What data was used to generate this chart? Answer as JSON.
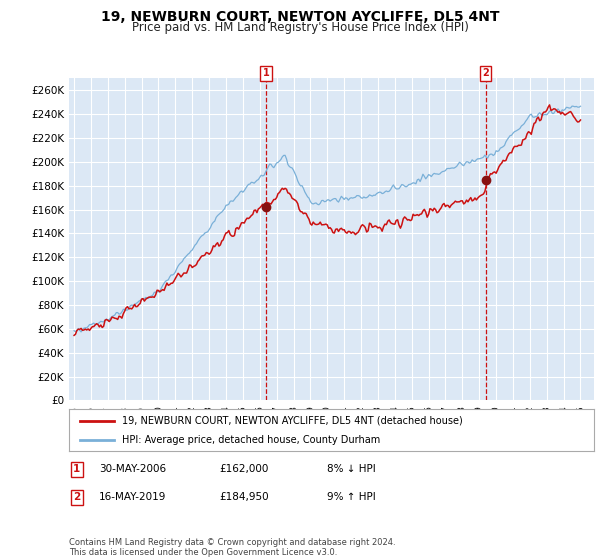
{
  "title": "19, NEWBURN COURT, NEWTON AYCLIFFE, DL5 4NT",
  "subtitle": "Price paid vs. HM Land Registry's House Price Index (HPI)",
  "title_fontsize": 10,
  "subtitle_fontsize": 8.5,
  "ylabel_ticks": [
    "£0",
    "£20K",
    "£40K",
    "£60K",
    "£80K",
    "£100K",
    "£120K",
    "£140K",
    "£160K",
    "£180K",
    "£200K",
    "£220K",
    "£240K",
    "£260K"
  ],
  "ytick_vals": [
    0,
    20000,
    40000,
    60000,
    80000,
    100000,
    120000,
    140000,
    160000,
    180000,
    200000,
    220000,
    240000,
    260000
  ],
  "ylim": [
    0,
    270000
  ],
  "xlim_left": 1994.7,
  "xlim_right": 2025.8,
  "background_color": "#ffffff",
  "plot_bg_color": "#dce8f5",
  "grid_color": "#ffffff",
  "shade_color": "#dce8f5",
  "hpi_color": "#7ab0d8",
  "price_color": "#cc1111",
  "marker_color": "#881111",
  "vline_color": "#cc1111",
  "legend_label_price": "19, NEWBURN COURT, NEWTON AYCLIFFE, DL5 4NT (detached house)",
  "legend_label_hpi": "HPI: Average price, detached house, County Durham",
  "sale1_date": "30-MAY-2006",
  "sale1_price": "£162,000",
  "sale1_hpi": "8% ↓ HPI",
  "sale2_date": "16-MAY-2019",
  "sale2_price": "£184,950",
  "sale2_hpi": "9% ↑ HPI",
  "footer": "Contains HM Land Registry data © Crown copyright and database right 2024.\nThis data is licensed under the Open Government Licence v3.0.",
  "sale1_x": 2006.38,
  "sale1_y": 162000,
  "sale2_x": 2019.38,
  "sale2_y": 184950
}
